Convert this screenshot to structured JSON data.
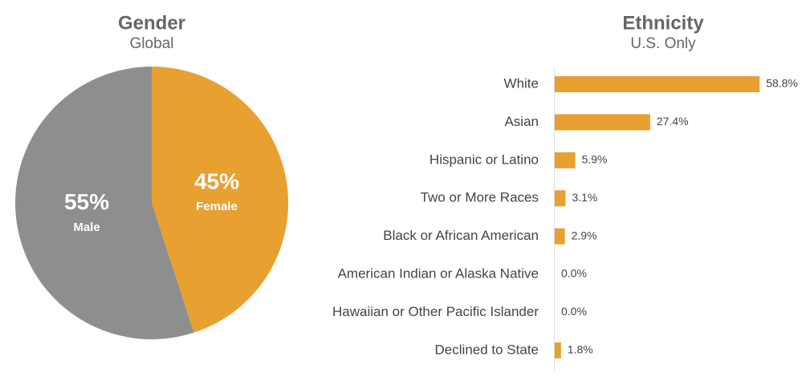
{
  "chart_data": [
    {
      "type": "pie",
      "title": "Gender",
      "subtitle": "Global",
      "categories": [
        "Female",
        "Male"
      ],
      "values": [
        45,
        55
      ],
      "value_labels": [
        "45%",
        "55%"
      ],
      "colors": [
        "#e8a030",
        "#8e8e8e"
      ]
    },
    {
      "type": "hbar",
      "title": "Ethnicity",
      "subtitle": "U.S. Only",
      "categories": [
        "White",
        "Asian",
        "Hispanic or Latino",
        "Two or More Races",
        "Black or African American",
        "American Indian or Alaska Native",
        "Hawaiian or Other Pacific Islander",
        "Declined to State"
      ],
      "values": [
        58.8,
        27.4,
        5.9,
        3.1,
        2.9,
        0.0,
        0.0,
        1.8
      ],
      "value_labels": [
        "58.8%",
        "27.4%",
        "5.9%",
        "3.1%",
        "2.9%",
        "0.0%",
        "0.0%",
        "1.8%"
      ],
      "color": "#e8a030"
    }
  ]
}
